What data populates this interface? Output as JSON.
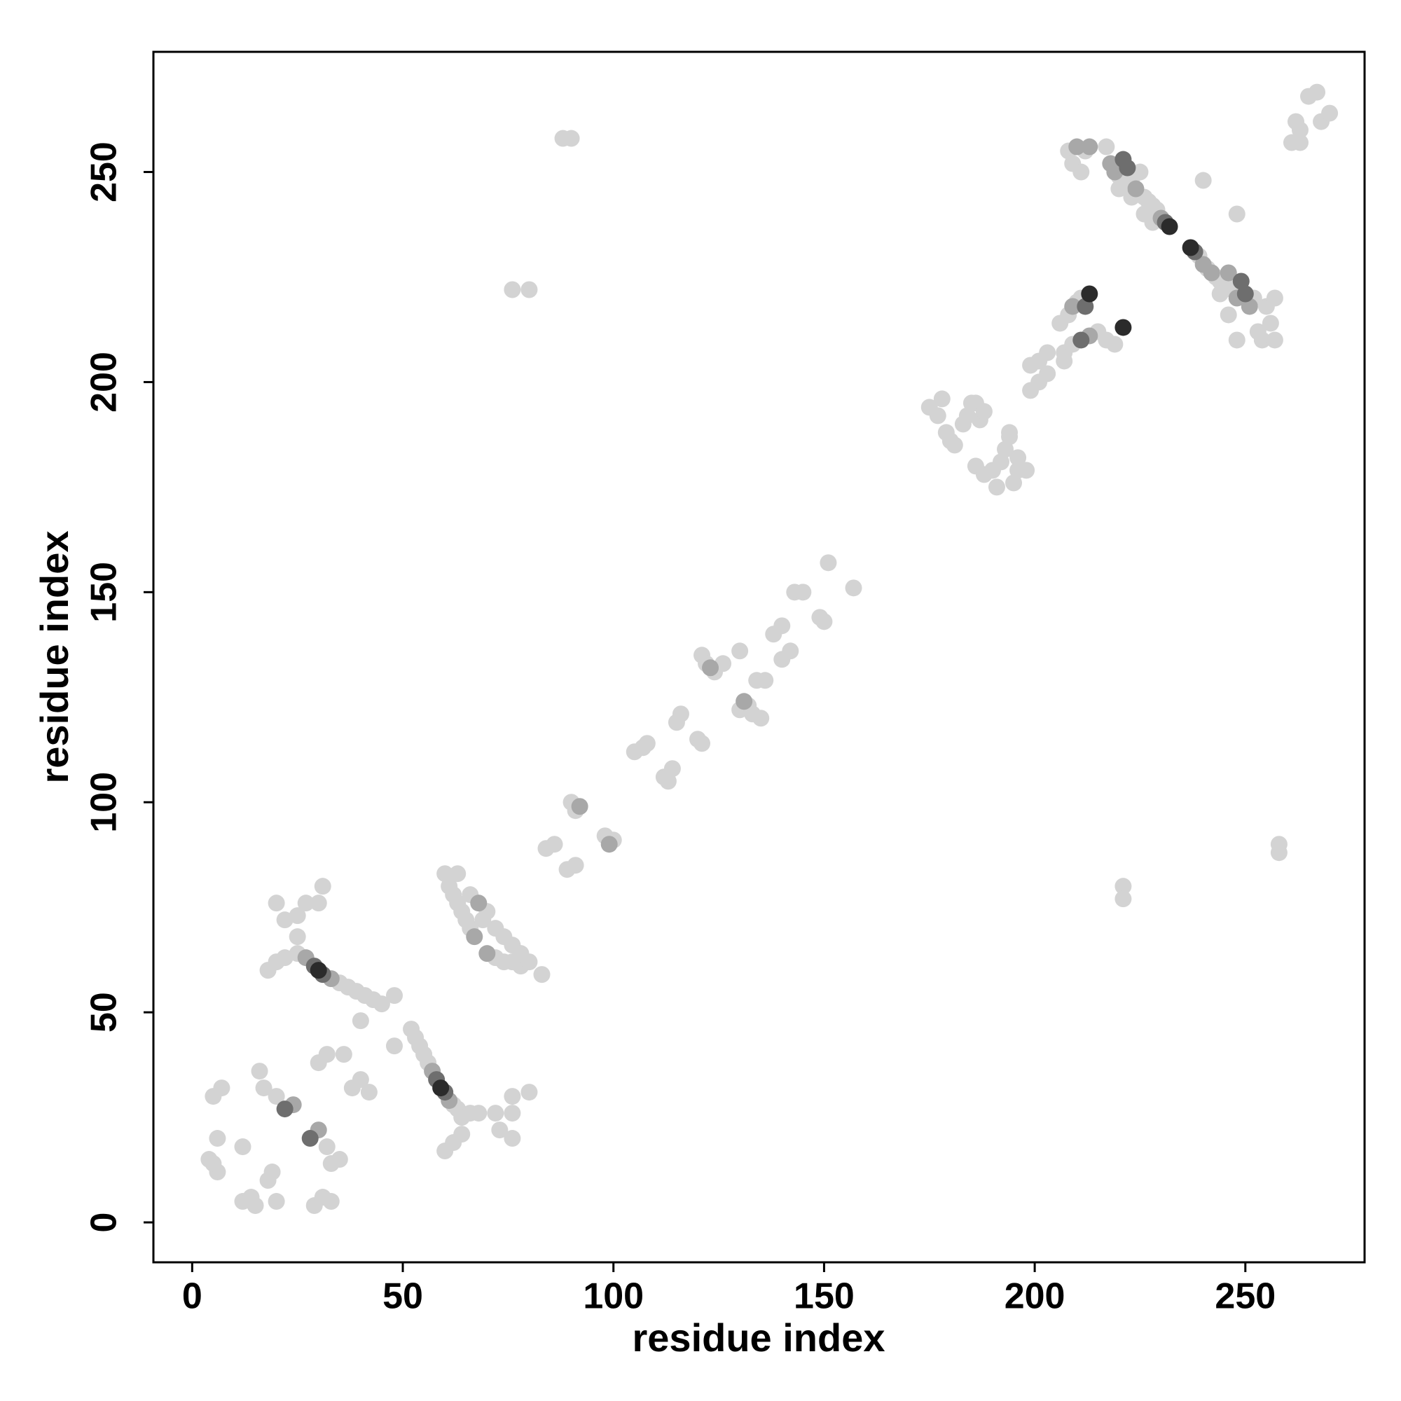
{
  "chart_data": {
    "type": "scatter",
    "x_label": "residue index",
    "y_label": "residue index",
    "xlim": [
      -9.2,
      278.3
    ],
    "ylim": [
      -9.5,
      278.6
    ],
    "xticks": [
      0,
      50,
      100,
      150,
      200,
      250
    ],
    "yticks": [
      0,
      50,
      100,
      150,
      200,
      250
    ],
    "grid": false,
    "series": [
      {
        "color": "#d3d3d3",
        "x": [
          5,
          7,
          4,
          6,
          5,
          12,
          14,
          15,
          12,
          19,
          18,
          20,
          6,
          16,
          17,
          20,
          32,
          35,
          33,
          29,
          31,
          33,
          30,
          32,
          36,
          38,
          40,
          42,
          25,
          35,
          37,
          39,
          41,
          43,
          45,
          20,
          22,
          18,
          20,
          22,
          25,
          27,
          30,
          31,
          25,
          40,
          48,
          48,
          52,
          53,
          54,
          55,
          56,
          62,
          63,
          64,
          60,
          62,
          64,
          66,
          68,
          72,
          73,
          76,
          76,
          76,
          80,
          60,
          61,
          62,
          63,
          64,
          65,
          66,
          72,
          74,
          76,
          78,
          80,
          83,
          63,
          70,
          72,
          74,
          76,
          78,
          66,
          69,
          84,
          86,
          89,
          91,
          90,
          91,
          98,
          100,
          105,
          107,
          108,
          112,
          113,
          114,
          115,
          116,
          120,
          121,
          121,
          122,
          124,
          126,
          130,
          132,
          133,
          135,
          130,
          134,
          136,
          138,
          140,
          140,
          142,
          143,
          145,
          150,
          149,
          151,
          157,
          175,
          177,
          178,
          179,
          180,
          181,
          183,
          184,
          185,
          186,
          187,
          188,
          186,
          188,
          190,
          192,
          193,
          194,
          195,
          196,
          198,
          191,
          194,
          196,
          199,
          201,
          203,
          199,
          201,
          203,
          206,
          208,
          210,
          211,
          207,
          209,
          215,
          217,
          219,
          207,
          208,
          209,
          211,
          212,
          217,
          220,
          223,
          225,
          226,
          227,
          228,
          229,
          223,
          220,
          226,
          228,
          239,
          241,
          243,
          244,
          245,
          247,
          252,
          253,
          254,
          255,
          256,
          257,
          257,
          248,
          248,
          240,
          244,
          246,
          88,
          90,
          76,
          80,
          221,
          221,
          258,
          258,
          262,
          263,
          265,
          267,
          268,
          270,
          261,
          263
        ],
        "values": [
          30,
          32,
          15,
          12,
          14,
          5,
          6,
          4,
          18,
          12,
          10,
          5,
          20,
          36,
          32,
          30,
          18,
          15,
          14,
          4,
          6,
          5,
          38,
          40,
          40,
          32,
          34,
          31,
          64,
          57,
          56,
          55,
          54,
          53,
          52,
          62,
          63,
          60,
          76,
          72,
          73,
          76,
          76,
          80,
          68,
          48,
          54,
          42,
          46,
          44,
          42,
          40,
          38,
          28,
          27,
          25,
          17,
          19,
          21,
          26,
          26,
          26,
          22,
          20,
          26,
          30,
          31,
          83,
          80,
          78,
          76,
          74,
          72,
          70,
          63,
          62,
          62,
          61,
          62,
          59,
          83,
          74,
          70,
          68,
          66,
          64,
          78,
          72,
          89,
          90,
          84,
          85,
          100,
          98,
          92,
          91,
          112,
          113,
          114,
          106,
          105,
          108,
          119,
          121,
          115,
          114,
          135,
          133,
          131,
          133,
          122,
          123,
          121,
          120,
          136,
          129,
          129,
          140,
          142,
          134,
          136,
          150,
          150,
          143,
          144,
          157,
          151,
          194,
          192,
          196,
          188,
          186,
          185,
          190,
          192,
          195,
          195,
          191,
          193,
          180,
          178,
          179,
          181,
          184,
          187,
          176,
          179,
          179,
          175,
          188,
          182,
          204,
          205,
          207,
          198,
          200,
          202,
          214,
          216,
          219,
          220,
          207,
          209,
          212,
          210,
          209,
          205,
          255,
          252,
          250,
          255,
          256,
          249,
          248,
          250,
          244,
          243,
          242,
          241,
          244,
          246,
          240,
          238,
          230,
          227,
          225,
          224,
          222,
          223,
          220,
          212,
          210,
          218,
          214,
          210,
          220,
          210,
          240,
          248,
          221,
          216,
          258,
          258,
          222,
          222,
          80,
          77,
          88,
          90,
          262,
          260,
          268,
          269,
          262,
          264,
          257,
          257
        ]
      },
      {
        "color": "#a8a8a8",
        "x": [
          27,
          33,
          57,
          61,
          24,
          30,
          67,
          70,
          92,
          99,
          209,
          213,
          219,
          224,
          230,
          240,
          242,
          246,
          248,
          251,
          210,
          213,
          218,
          68,
          123,
          131
        ],
        "values": [
          63,
          58,
          36,
          29,
          28,
          22,
          68,
          64,
          99,
          90,
          218,
          211,
          250,
          246,
          239,
          228,
          226,
          226,
          220,
          218,
          256,
          256,
          252,
          76,
          132,
          124
        ]
      },
      {
        "color": "#6e6e6e",
        "x": [
          29,
          31,
          58,
          60,
          238,
          231,
          222,
          250,
          212,
          211,
          221,
          249,
          22,
          28
        ],
        "values": [
          61,
          59,
          34,
          31,
          231,
          238,
          251,
          221,
          218,
          210,
          253,
          224,
          27,
          20
        ]
      },
      {
        "color": "#2b2b2b",
        "x": [
          30,
          59,
          232,
          237,
          213,
          221
        ],
        "values": [
          60,
          32,
          237,
          232,
          221,
          213
        ]
      }
    ]
  }
}
